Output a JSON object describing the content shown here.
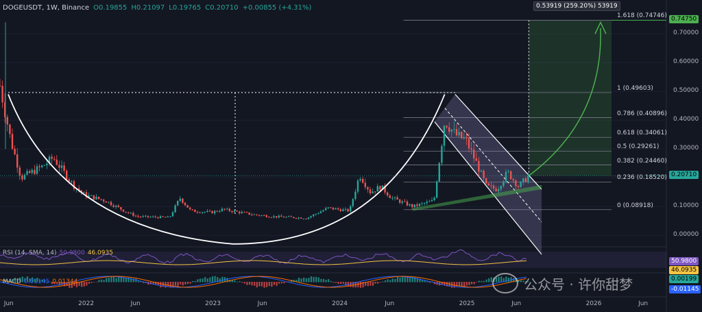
{
  "legend": {
    "symbol": "DOGEUSDT, 1W, Binance",
    "open": "O0.19855",
    "high": "H0.21097",
    "low": "L0.19765",
    "close": "C0.20710",
    "change": "+0.00855 (+4.31%)"
  },
  "measure_label": "0.53919 (259.20%) 53919",
  "colors": {
    "bg": "#131722",
    "up": "#26a69a",
    "down": "#ef5350",
    "target": "#4caf50",
    "channel": "#9c8fd0",
    "rsi": "#7e57c2",
    "rsi_ma": "#f5c542"
  },
  "chart_data": {
    "type": "candlestick",
    "title": "DOGEUSDT, 1W, Binance",
    "price_axis": [
      "0.70000",
      "0.60000",
      "0.50000",
      "0.40000",
      "0.30000",
      "0.20000",
      "0.10000",
      "0.00000"
    ],
    "time_axis": [
      "Jun",
      "2022",
      "Jun",
      "2023",
      "Jun",
      "2024",
      "Jun",
      "2025",
      "Jun",
      "2026",
      "Jun"
    ],
    "ylim": [
      -0.04,
      0.77
    ],
    "last_price": "0.20710",
    "target_price": "0.74750",
    "trend": [
      [
        "2021-05",
        0.52
      ],
      [
        "2021-06",
        0.33
      ],
      [
        "2021-07",
        0.2
      ],
      [
        "2021-09",
        0.24
      ],
      [
        "2021-10",
        0.27
      ],
      [
        "2021-12",
        0.17
      ],
      [
        "2022-01",
        0.14
      ],
      [
        "2022-03",
        0.12
      ],
      [
        "2022-05",
        0.08
      ],
      [
        "2022-06",
        0.065
      ],
      [
        "2022-09",
        0.062
      ],
      [
        "2022-10",
        0.13
      ],
      [
        "2022-11",
        0.085
      ],
      [
        "2023-01",
        0.08
      ],
      [
        "2023-02",
        0.09
      ],
      [
        "2023-05",
        0.072
      ],
      [
        "2023-07",
        0.065
      ],
      [
        "2023-10",
        0.06
      ],
      [
        "2023-12",
        0.095
      ],
      [
        "2024-02",
        0.085
      ],
      [
        "2024-03",
        0.21
      ],
      [
        "2024-04",
        0.15
      ],
      [
        "2024-05",
        0.17
      ],
      [
        "2024-06",
        0.13
      ],
      [
        "2024-08",
        0.1
      ],
      [
        "2024-10",
        0.12
      ],
      [
        "2024-11",
        0.4
      ],
      [
        "2024-12",
        0.35
      ],
      [
        "2025-01",
        0.33
      ],
      [
        "2025-02",
        0.25
      ],
      [
        "2025-03",
        0.17
      ],
      [
        "2025-04",
        0.16
      ],
      [
        "2025-05",
        0.22
      ],
      [
        "2025-06",
        0.17
      ],
      [
        "2025-07",
        0.207
      ]
    ],
    "fib_levels": [
      {
        "label": "1.618 (0.74746)",
        "value": 0.74746
      },
      {
        "label": "1 (0.49603)",
        "value": 0.49603
      },
      {
        "label": "0.786 (0.40896)",
        "value": 0.40896
      },
      {
        "label": "0.618 (0.34061)",
        "value": 0.34061
      },
      {
        "label": "0.5 (0.29261)",
        "value": 0.29261
      },
      {
        "label": "0.382 (0.24460)",
        "value": 0.2446
      },
      {
        "label": "0.236 (0.18520)",
        "value": 0.1852
      },
      {
        "label": "0 (0.08918)",
        "value": 0.08918
      }
    ],
    "rsi": {
      "label": "RSI (14, SMA, 14)",
      "value": "50.9800",
      "ma": "46.0935"
    },
    "macd": {
      "label": "MACD",
      "hist": "0.00199",
      "signal": "-0.01145",
      "m1": "0.01145",
      "m2": "0.01344"
    }
  }
}
